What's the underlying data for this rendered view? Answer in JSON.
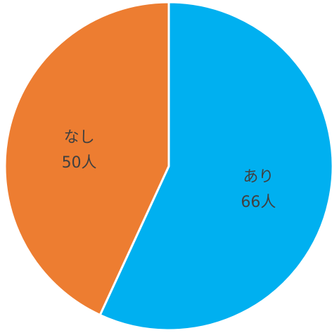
{
  "chart_data": {
    "type": "pie",
    "start_angle_deg": 0,
    "direction": "clockwise",
    "slices": [
      {
        "label": "あり",
        "value": 66,
        "value_text": "66人",
        "color": "#00B0F0"
      },
      {
        "label": "なし",
        "value": 50,
        "value_text": "50人",
        "color": "#ED7D31"
      }
    ]
  }
}
